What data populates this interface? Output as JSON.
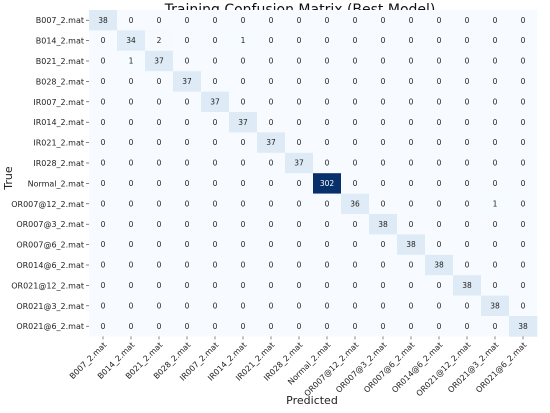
{
  "chart_data": {
    "type": "heatmap",
    "title": "Training Confusion Matrix (Best Model)",
    "xlabel": "Predicted",
    "ylabel": "True",
    "labels": [
      "B007_2.mat",
      "B014_2.mat",
      "B021_2.mat",
      "B028_2.mat",
      "IR007_2.mat",
      "IR014_2.mat",
      "IR021_2.mat",
      "IR028_2.mat",
      "Normal_2.mat",
      "OR007@12_2.mat",
      "OR007@3_2.mat",
      "OR007@6_2.mat",
      "OR014@6_2.mat",
      "OR021@12_2.mat",
      "OR021@3_2.mat",
      "OR021@6_2.mat"
    ],
    "matrix": [
      [
        38,
        0,
        0,
        0,
        0,
        0,
        0,
        0,
        0,
        0,
        0,
        0,
        0,
        0,
        0,
        0
      ],
      [
        0,
        34,
        2,
        0,
        0,
        1,
        0,
        0,
        0,
        0,
        0,
        0,
        0,
        0,
        0,
        0
      ],
      [
        0,
        1,
        37,
        0,
        0,
        0,
        0,
        0,
        0,
        0,
        0,
        0,
        0,
        0,
        0,
        0
      ],
      [
        0,
        0,
        0,
        37,
        0,
        0,
        0,
        0,
        0,
        0,
        0,
        0,
        0,
        0,
        0,
        0
      ],
      [
        0,
        0,
        0,
        0,
        37,
        0,
        0,
        0,
        0,
        0,
        0,
        0,
        0,
        0,
        0,
        0
      ],
      [
        0,
        0,
        0,
        0,
        0,
        37,
        0,
        0,
        0,
        0,
        0,
        0,
        0,
        0,
        0,
        0
      ],
      [
        0,
        0,
        0,
        0,
        0,
        0,
        37,
        0,
        0,
        0,
        0,
        0,
        0,
        0,
        0,
        0
      ],
      [
        0,
        0,
        0,
        0,
        0,
        0,
        0,
        37,
        0,
        0,
        0,
        0,
        0,
        0,
        0,
        0
      ],
      [
        0,
        0,
        0,
        0,
        0,
        0,
        0,
        0,
        302,
        0,
        0,
        0,
        0,
        0,
        0,
        0
      ],
      [
        0,
        0,
        0,
        0,
        0,
        0,
        0,
        0,
        0,
        36,
        0,
        0,
        0,
        0,
        1,
        0
      ],
      [
        0,
        0,
        0,
        0,
        0,
        0,
        0,
        0,
        0,
        0,
        38,
        0,
        0,
        0,
        0,
        0
      ],
      [
        0,
        0,
        0,
        0,
        0,
        0,
        0,
        0,
        0,
        0,
        0,
        38,
        0,
        0,
        0,
        0
      ],
      [
        0,
        0,
        0,
        0,
        0,
        0,
        0,
        0,
        0,
        0,
        0,
        0,
        38,
        0,
        0,
        0
      ],
      [
        0,
        0,
        0,
        0,
        0,
        0,
        0,
        0,
        0,
        0,
        0,
        0,
        0,
        38,
        0,
        0
      ],
      [
        0,
        0,
        0,
        0,
        0,
        0,
        0,
        0,
        0,
        0,
        0,
        0,
        0,
        0,
        38,
        0
      ],
      [
        0,
        0,
        0,
        0,
        0,
        0,
        0,
        0,
        0,
        0,
        0,
        0,
        0,
        0,
        0,
        38
      ]
    ],
    "colormap": "Blues",
    "colors": {
      "low": "#f7fbff",
      "high": "#08306b"
    },
    "colorbar": false,
    "grid": false
  }
}
